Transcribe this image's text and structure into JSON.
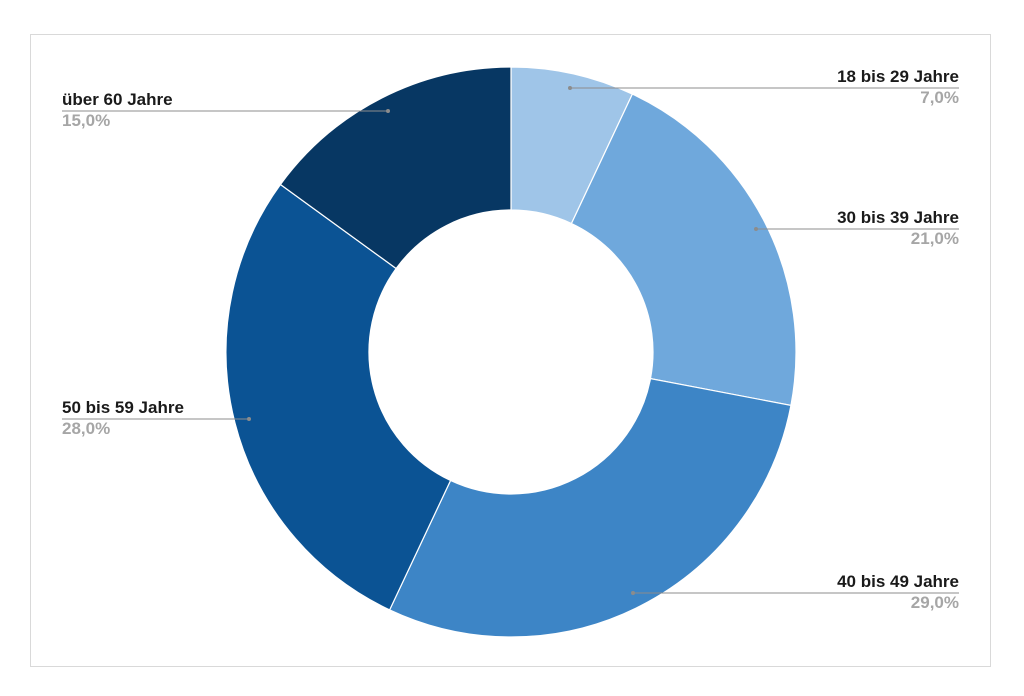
{
  "chart_data": {
    "type": "pie",
    "variant": "donut",
    "title": "",
    "categories": [
      "18 bis 29 Jahre",
      "30 bis 39 Jahre",
      "40 bis 49 Jahre",
      "50 bis 59 Jahre",
      "über 60 Jahre"
    ],
    "values": [
      7.0,
      21.0,
      29.0,
      28.0,
      15.0
    ],
    "value_labels": [
      "7,0%",
      "21,0%",
      "29,0%",
      "28,0%",
      "15,0%"
    ],
    "colors": [
      "#9fc5e8",
      "#6fa8dc",
      "#3d85c6",
      "#0b5394",
      "#073763"
    ],
    "unit": "%"
  }
}
